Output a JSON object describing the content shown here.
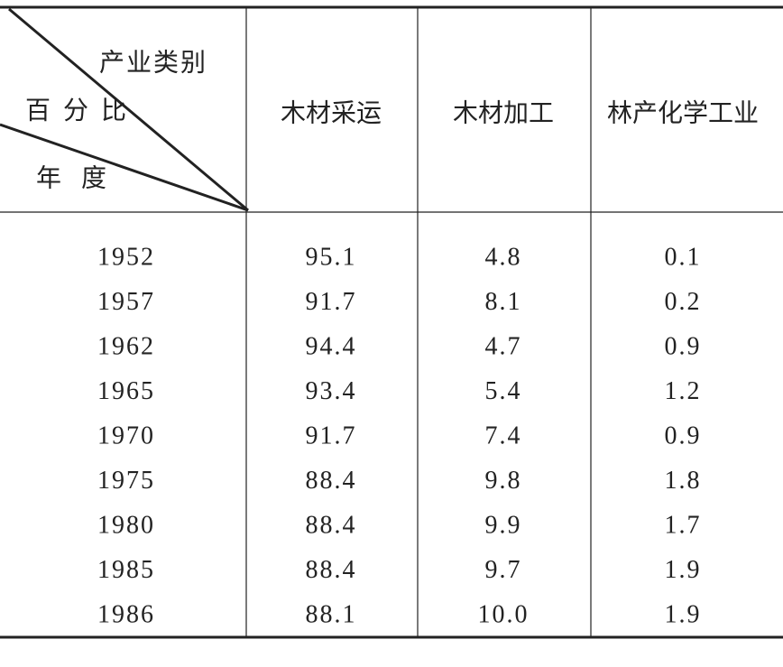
{
  "table": {
    "corner": {
      "columns_label": "产业类别",
      "unit_label": "百分比",
      "rows_label": "年度"
    },
    "columns": [
      "木材采运",
      "木材加工",
      "林产化学工业"
    ],
    "rows": [
      [
        "1952",
        "95.1",
        "4.8",
        "0.1"
      ],
      [
        "1957",
        "91.7",
        "8.1",
        "0.2"
      ],
      [
        "1962",
        "94.4",
        "4.7",
        "0.9"
      ],
      [
        "1965",
        "93.4",
        "5.4",
        "1.2"
      ],
      [
        "1970",
        "91.7",
        "7.4",
        "0.9"
      ],
      [
        "1975",
        "88.4",
        "9.8",
        "1.8"
      ],
      [
        "1980",
        "88.4",
        "9.9",
        "1.7"
      ],
      [
        "1985",
        "88.4",
        "9.7",
        "1.9"
      ],
      [
        "1986",
        "88.1",
        "10.0",
        "1.9"
      ]
    ]
  }
}
